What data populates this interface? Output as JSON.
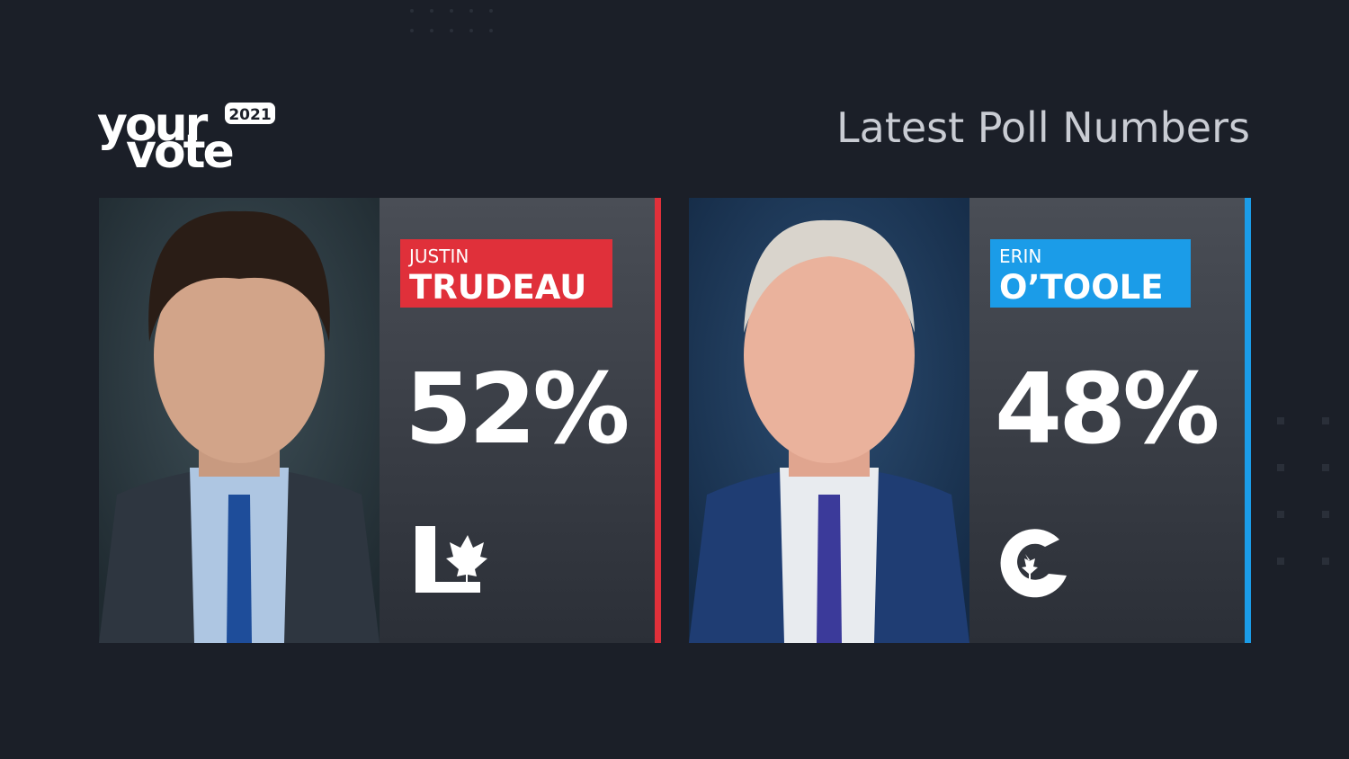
{
  "logo": {
    "line1": "your",
    "line2": "vote",
    "year": "2021"
  },
  "title": "Latest Poll Numbers",
  "candidates": [
    {
      "first_name": "JUSTIN",
      "last_name": "TRUDEAU",
      "percent": "52%",
      "color": "#e0303a"
    },
    {
      "first_name": "ERIN",
      "last_name": "O’TOOLE",
      "percent": "48%",
      "color": "#1b9ce8"
    }
  ]
}
